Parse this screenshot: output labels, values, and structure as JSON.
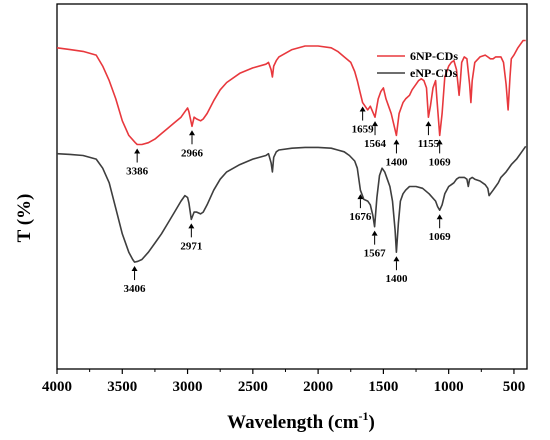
{
  "chart_data": {
    "type": "line",
    "xlabel_main": "Wavelength (cm",
    "xlabel_sup": "-1",
    "xlabel_end": ")",
    "ylabel": "T (%)",
    "xlim": [
      4000,
      400
    ],
    "x_reversed": true,
    "x_ticks": [
      4000,
      3500,
      3000,
      2500,
      2000,
      1500,
      1000,
      500
    ],
    "y_ticks_shown": false,
    "legend_position": "top-right",
    "series": [
      {
        "name": "6NP-CDs",
        "color": "#e8383d",
        "points": [
          [
            4000,
            0.88
          ],
          [
            3900,
            0.875
          ],
          [
            3800,
            0.87
          ],
          [
            3700,
            0.86
          ],
          [
            3650,
            0.83
          ],
          [
            3600,
            0.79
          ],
          [
            3550,
            0.74
          ],
          [
            3500,
            0.68
          ],
          [
            3450,
            0.64
          ],
          [
            3400,
            0.62
          ],
          [
            3386,
            0.615
          ],
          [
            3350,
            0.615
          ],
          [
            3300,
            0.62
          ],
          [
            3250,
            0.63
          ],
          [
            3200,
            0.645
          ],
          [
            3150,
            0.66
          ],
          [
            3100,
            0.675
          ],
          [
            3050,
            0.69
          ],
          [
            3020,
            0.705
          ],
          [
            3000,
            0.715
          ],
          [
            2990,
            0.705
          ],
          [
            2966,
            0.665
          ],
          [
            2950,
            0.69
          ],
          [
            2930,
            0.685
          ],
          [
            2900,
            0.68
          ],
          [
            2880,
            0.685
          ],
          [
            2850,
            0.7
          ],
          [
            2800,
            0.735
          ],
          [
            2750,
            0.765
          ],
          [
            2700,
            0.785
          ],
          [
            2600,
            0.81
          ],
          [
            2500,
            0.825
          ],
          [
            2400,
            0.835
          ],
          [
            2380,
            0.84
          ],
          [
            2360,
            0.82
          ],
          [
            2350,
            0.8
          ],
          [
            2340,
            0.83
          ],
          [
            2320,
            0.845
          ],
          [
            2300,
            0.855
          ],
          [
            2200,
            0.875
          ],
          [
            2100,
            0.885
          ],
          [
            2000,
            0.885
          ],
          [
            1900,
            0.88
          ],
          [
            1850,
            0.87
          ],
          [
            1800,
            0.855
          ],
          [
            1750,
            0.84
          ],
          [
            1720,
            0.815
          ],
          [
            1700,
            0.79
          ],
          [
            1680,
            0.76
          ],
          [
            1659,
            0.73
          ],
          [
            1640,
            0.72
          ],
          [
            1620,
            0.71
          ],
          [
            1600,
            0.72
          ],
          [
            1564,
            0.69
          ],
          [
            1540,
            0.74
          ],
          [
            1520,
            0.76
          ],
          [
            1500,
            0.77
          ],
          [
            1480,
            0.74
          ],
          [
            1460,
            0.72
          ],
          [
            1440,
            0.7
          ],
          [
            1420,
            0.67
          ],
          [
            1400,
            0.64
          ],
          [
            1380,
            0.7
          ],
          [
            1350,
            0.73
          ],
          [
            1330,
            0.74
          ],
          [
            1300,
            0.75
          ],
          [
            1280,
            0.765
          ],
          [
            1250,
            0.78
          ],
          [
            1230,
            0.79
          ],
          [
            1210,
            0.795
          ],
          [
            1190,
            0.79
          ],
          [
            1170,
            0.77
          ],
          [
            1155,
            0.69
          ],
          [
            1140,
            0.72
          ],
          [
            1120,
            0.77
          ],
          [
            1100,
            0.79
          ],
          [
            1090,
            0.74
          ],
          [
            1069,
            0.64
          ],
          [
            1050,
            0.7
          ],
          [
            1030,
            0.8
          ],
          [
            1000,
            0.83
          ],
          [
            980,
            0.84
          ],
          [
            960,
            0.845
          ],
          [
            940,
            0.82
          ],
          [
            920,
            0.75
          ],
          [
            910,
            0.79
          ],
          [
            900,
            0.84
          ],
          [
            880,
            0.855
          ],
          [
            860,
            0.85
          ],
          [
            840,
            0.78
          ],
          [
            830,
            0.73
          ],
          [
            820,
            0.79
          ],
          [
            800,
            0.84
          ],
          [
            760,
            0.855
          ],
          [
            720,
            0.86
          ],
          [
            700,
            0.855
          ],
          [
            680,
            0.85
          ],
          [
            660,
            0.85
          ],
          [
            640,
            0.855
          ],
          [
            620,
            0.855
          ],
          [
            600,
            0.855
          ],
          [
            580,
            0.84
          ],
          [
            560,
            0.78
          ],
          [
            545,
            0.71
          ],
          [
            530,
            0.8
          ],
          [
            520,
            0.85
          ],
          [
            500,
            0.86
          ],
          [
            470,
            0.88
          ],
          [
            430,
            0.9
          ],
          [
            410,
            0.9
          ]
        ]
      },
      {
        "name": "eNP-CDs",
        "color": "#3e3e3e",
        "points": [
          [
            4000,
            0.59
          ],
          [
            3900,
            0.588
          ],
          [
            3800,
            0.585
          ],
          [
            3700,
            0.575
          ],
          [
            3650,
            0.55
          ],
          [
            3600,
            0.51
          ],
          [
            3550,
            0.44
          ],
          [
            3500,
            0.37
          ],
          [
            3450,
            0.32
          ],
          [
            3420,
            0.3
          ],
          [
            3406,
            0.293
          ],
          [
            3380,
            0.295
          ],
          [
            3350,
            0.3
          ],
          [
            3300,
            0.32
          ],
          [
            3250,
            0.345
          ],
          [
            3200,
            0.37
          ],
          [
            3150,
            0.4
          ],
          [
            3100,
            0.43
          ],
          [
            3050,
            0.46
          ],
          [
            3020,
            0.475
          ],
          [
            3000,
            0.47
          ],
          [
            2990,
            0.455
          ],
          [
            2971,
            0.41
          ],
          [
            2950,
            0.43
          ],
          [
            2930,
            0.43
          ],
          [
            2900,
            0.425
          ],
          [
            2880,
            0.43
          ],
          [
            2850,
            0.45
          ],
          [
            2800,
            0.49
          ],
          [
            2750,
            0.52
          ],
          [
            2700,
            0.54
          ],
          [
            2600,
            0.56
          ],
          [
            2500,
            0.575
          ],
          [
            2400,
            0.585
          ],
          [
            2380,
            0.59
          ],
          [
            2360,
            0.565
          ],
          [
            2350,
            0.54
          ],
          [
            2340,
            0.58
          ],
          [
            2320,
            0.595
          ],
          [
            2300,
            0.6
          ],
          [
            2200,
            0.605
          ],
          [
            2100,
            0.607
          ],
          [
            2000,
            0.607
          ],
          [
            1900,
            0.605
          ],
          [
            1850,
            0.6
          ],
          [
            1800,
            0.595
          ],
          [
            1760,
            0.585
          ],
          [
            1720,
            0.57
          ],
          [
            1700,
            0.55
          ],
          [
            1676,
            0.49
          ],
          [
            1650,
            0.465
          ],
          [
            1620,
            0.46
          ],
          [
            1600,
            0.45
          ],
          [
            1580,
            0.42
          ],
          [
            1567,
            0.39
          ],
          [
            1550,
            0.47
          ],
          [
            1530,
            0.53
          ],
          [
            1510,
            0.55
          ],
          [
            1490,
            0.54
          ],
          [
            1470,
            0.52
          ],
          [
            1450,
            0.5
          ],
          [
            1430,
            0.46
          ],
          [
            1410,
            0.38
          ],
          [
            1400,
            0.32
          ],
          [
            1385,
            0.4
          ],
          [
            1370,
            0.46
          ],
          [
            1350,
            0.48
          ],
          [
            1330,
            0.49
          ],
          [
            1300,
            0.5
          ],
          [
            1250,
            0.5
          ],
          [
            1200,
            0.495
          ],
          [
            1150,
            0.48
          ],
          [
            1100,
            0.46
          ],
          [
            1085,
            0.445
          ],
          [
            1069,
            0.435
          ],
          [
            1050,
            0.45
          ],
          [
            1030,
            0.48
          ],
          [
            1000,
            0.5
          ],
          [
            980,
            0.505
          ],
          [
            960,
            0.51
          ],
          [
            940,
            0.52
          ],
          [
            920,
            0.525
          ],
          [
            900,
            0.525
          ],
          [
            880,
            0.525
          ],
          [
            860,
            0.52
          ],
          [
            850,
            0.5
          ],
          [
            840,
            0.52
          ],
          [
            820,
            0.525
          ],
          [
            800,
            0.52
          ],
          [
            760,
            0.515
          ],
          [
            720,
            0.505
          ],
          [
            700,
            0.495
          ],
          [
            690,
            0.475
          ],
          [
            680,
            0.48
          ],
          [
            660,
            0.49
          ],
          [
            640,
            0.5
          ],
          [
            620,
            0.51
          ],
          [
            600,
            0.525
          ],
          [
            560,
            0.54
          ],
          [
            520,
            0.56
          ],
          [
            480,
            0.575
          ],
          [
            440,
            0.595
          ],
          [
            410,
            0.61
          ]
        ]
      }
    ],
    "annotations": [
      {
        "label": "3386",
        "series": 0,
        "x": 3386
      },
      {
        "label": "2966",
        "series": 0,
        "x": 2966
      },
      {
        "label": "1659",
        "series": 0,
        "x": 1659
      },
      {
        "label": "1564",
        "series": 0,
        "x": 1564
      },
      {
        "label": "1400",
        "series": 0,
        "x": 1400
      },
      {
        "label": "1155",
        "series": 0,
        "x": 1155
      },
      {
        "label": "1069",
        "series": 0,
        "x": 1069
      },
      {
        "label": "3406",
        "series": 1,
        "x": 3406
      },
      {
        "label": "2971",
        "series": 1,
        "x": 2971
      },
      {
        "label": "1676",
        "series": 1,
        "x": 1676
      },
      {
        "label": "1567",
        "series": 1,
        "x": 1567
      },
      {
        "label": "1400",
        "series": 1,
        "x": 1400
      },
      {
        "label": "1069",
        "series": 1,
        "x": 1069
      }
    ]
  }
}
